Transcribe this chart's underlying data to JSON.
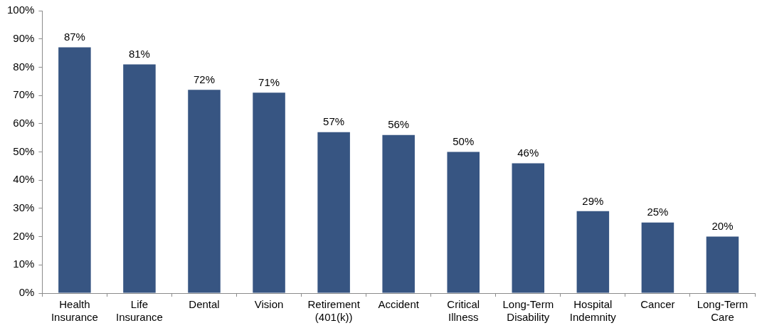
{
  "chart_data": {
    "type": "bar",
    "categories": [
      "Health Insurance",
      "Life Insurance",
      "Dental",
      "Vision",
      "Retirement (401(k))",
      "Accident",
      "Critical Illness",
      "Long-Term Disability",
      "Hospital Indemnity",
      "Cancer",
      "Long-Term Care"
    ],
    "values": [
      87,
      81,
      72,
      71,
      57,
      56,
      50,
      46,
      29,
      25,
      20
    ],
    "value_labels": [
      "87%",
      "81%",
      "72%",
      "71%",
      "57%",
      "56%",
      "50%",
      "46%",
      "29%",
      "25%",
      "20%"
    ],
    "color": "#375582",
    "ylim": [
      0,
      100
    ],
    "yticks": [
      {
        "value": 0,
        "label": "0%"
      },
      {
        "value": 10,
        "label": "10%"
      },
      {
        "value": 20,
        "label": "20%"
      },
      {
        "value": 30,
        "label": "30%"
      },
      {
        "value": 40,
        "label": "40%"
      },
      {
        "value": 50,
        "label": "50%"
      },
      {
        "value": 60,
        "label": "60%"
      },
      {
        "value": 70,
        "label": "70%"
      },
      {
        "value": 80,
        "label": "80%"
      },
      {
        "value": 90,
        "label": "90%"
      },
      {
        "value": 100,
        "label": "100%"
      }
    ],
    "grid": false,
    "legend": false
  }
}
